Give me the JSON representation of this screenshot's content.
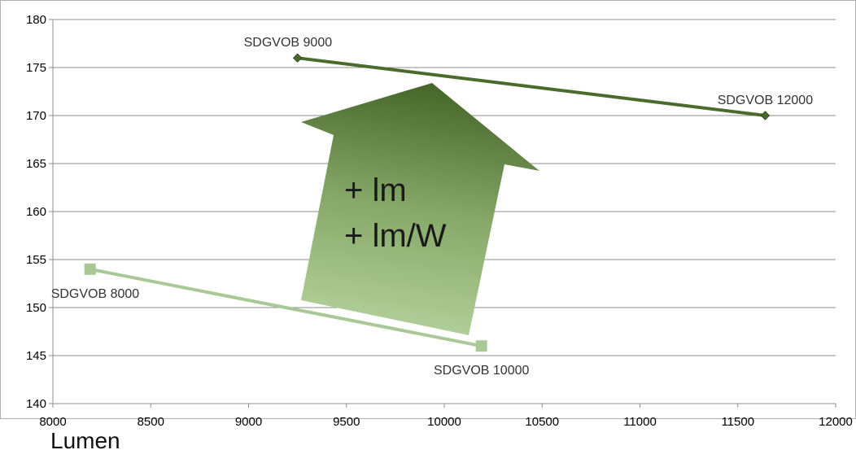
{
  "chart_data": {
    "type": "line",
    "xlabel": "Lumen",
    "ylabel": "",
    "xlim": [
      8000,
      12000
    ],
    "ylim": [
      140,
      180
    ],
    "x_ticks": [
      8000,
      8500,
      9000,
      9500,
      10000,
      10500,
      11000,
      11500,
      12000
    ],
    "y_ticks": [
      140,
      145,
      150,
      155,
      160,
      165,
      170,
      175,
      180
    ],
    "grid": "horizontal",
    "series": [
      {
        "color": "#4a6b2c",
        "marker": "diamond",
        "points": [
          {
            "x": 9250,
            "y": 176,
            "label": "SDGVOB 9000"
          },
          {
            "x": 11640,
            "y": 170,
            "label": "SDGVOB 12000"
          }
        ]
      },
      {
        "color": "#a9c896",
        "marker": "square",
        "points": [
          {
            "x": 8190,
            "y": 154,
            "label": "SDGVOB 8000"
          },
          {
            "x": 10190,
            "y": 146,
            "label": "SDGVOB 10000"
          }
        ]
      }
    ],
    "annotation": {
      "lines": [
        "+ lm",
        "+ lm/W"
      ],
      "shape": "arrow-up",
      "gradient_colors": [
        "#46662a",
        "#b5d29d"
      ]
    }
  }
}
